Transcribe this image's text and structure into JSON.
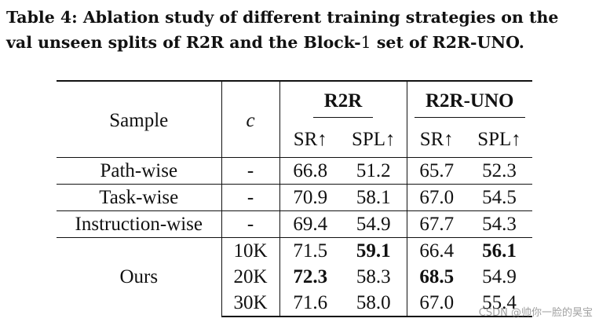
{
  "caption": {
    "line1": "Table 4: Ablation study of different training strategies on the",
    "line2_a": "val unseen splits of R2R and the Block-",
    "line2_b": "1",
    "line2_c": " set of R2R-UNO."
  },
  "table": {
    "headers": {
      "sample": "Sample",
      "c": "c",
      "group1": "R2R",
      "group2": "R2R-UNO",
      "sr": "SR↑",
      "spl": "SPL↑"
    },
    "rows": [
      {
        "sample": "Path-wise",
        "c": "-",
        "r2r_sr": "66.8",
        "r2r_spl": "51.2",
        "uno_sr": "65.7",
        "uno_spl": "52.3"
      },
      {
        "sample": "Task-wise",
        "c": "-",
        "r2r_sr": "70.9",
        "r2r_spl": "58.1",
        "uno_sr": "67.0",
        "uno_spl": "54.5"
      },
      {
        "sample": "Instruction-wise",
        "c": "-",
        "r2r_sr": "69.4",
        "r2r_spl": "54.9",
        "uno_sr": "67.7",
        "uno_spl": "54.3"
      },
      {
        "sample": "Ours",
        "c": "10K",
        "r2r_sr": "71.5",
        "r2r_spl": "59.1",
        "uno_sr": "66.4",
        "uno_spl": "56.1"
      },
      {
        "sample": "",
        "c": "20K",
        "r2r_sr": "72.3",
        "r2r_spl": "58.3",
        "uno_sr": "68.5",
        "uno_spl": "54.9"
      },
      {
        "sample": "",
        "c": "30K",
        "r2r_sr": "71.6",
        "r2r_spl": "58.0",
        "uno_sr": "67.0",
        "uno_spl": "55.4"
      }
    ]
  },
  "watermark": "CSDN @帅你一脸的昊宝"
}
